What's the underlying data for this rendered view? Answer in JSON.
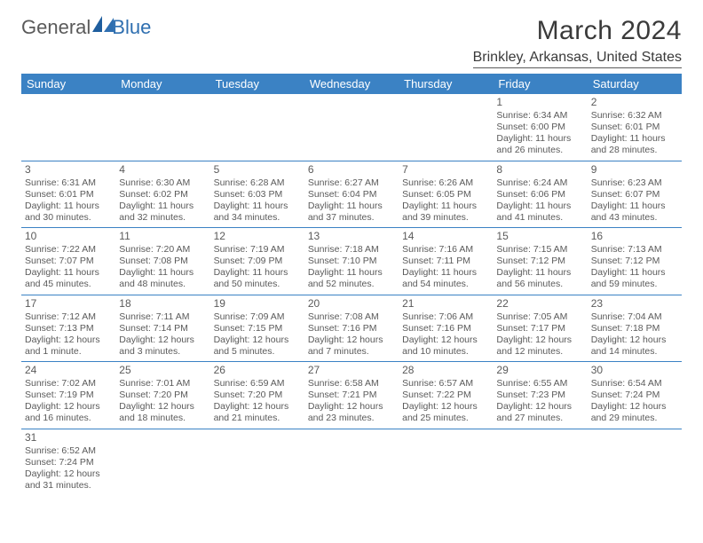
{
  "logo": {
    "text1": "General",
    "text2": "Blue"
  },
  "title": "March 2024",
  "location": "Brinkley, Arkansas, United States",
  "colors": {
    "header_bg": "#3b82c4",
    "header_fg": "#ffffff",
    "rule": "#3b82c4",
    "text": "#5a5a5a",
    "logo_blue": "#2f6fb0"
  },
  "day_names": [
    "Sunday",
    "Monday",
    "Tuesday",
    "Wednesday",
    "Thursday",
    "Friday",
    "Saturday"
  ],
  "weeks": [
    [
      null,
      null,
      null,
      null,
      null,
      {
        "n": "1",
        "sunrise": "Sunrise: 6:34 AM",
        "sunset": "Sunset: 6:00 PM",
        "daylight": "Daylight: 11 hours and 26 minutes."
      },
      {
        "n": "2",
        "sunrise": "Sunrise: 6:32 AM",
        "sunset": "Sunset: 6:01 PM",
        "daylight": "Daylight: 11 hours and 28 minutes."
      }
    ],
    [
      {
        "n": "3",
        "sunrise": "Sunrise: 6:31 AM",
        "sunset": "Sunset: 6:01 PM",
        "daylight": "Daylight: 11 hours and 30 minutes."
      },
      {
        "n": "4",
        "sunrise": "Sunrise: 6:30 AM",
        "sunset": "Sunset: 6:02 PM",
        "daylight": "Daylight: 11 hours and 32 minutes."
      },
      {
        "n": "5",
        "sunrise": "Sunrise: 6:28 AM",
        "sunset": "Sunset: 6:03 PM",
        "daylight": "Daylight: 11 hours and 34 minutes."
      },
      {
        "n": "6",
        "sunrise": "Sunrise: 6:27 AM",
        "sunset": "Sunset: 6:04 PM",
        "daylight": "Daylight: 11 hours and 37 minutes."
      },
      {
        "n": "7",
        "sunrise": "Sunrise: 6:26 AM",
        "sunset": "Sunset: 6:05 PM",
        "daylight": "Daylight: 11 hours and 39 minutes."
      },
      {
        "n": "8",
        "sunrise": "Sunrise: 6:24 AM",
        "sunset": "Sunset: 6:06 PM",
        "daylight": "Daylight: 11 hours and 41 minutes."
      },
      {
        "n": "9",
        "sunrise": "Sunrise: 6:23 AM",
        "sunset": "Sunset: 6:07 PM",
        "daylight": "Daylight: 11 hours and 43 minutes."
      }
    ],
    [
      {
        "n": "10",
        "sunrise": "Sunrise: 7:22 AM",
        "sunset": "Sunset: 7:07 PM",
        "daylight": "Daylight: 11 hours and 45 minutes."
      },
      {
        "n": "11",
        "sunrise": "Sunrise: 7:20 AM",
        "sunset": "Sunset: 7:08 PM",
        "daylight": "Daylight: 11 hours and 48 minutes."
      },
      {
        "n": "12",
        "sunrise": "Sunrise: 7:19 AM",
        "sunset": "Sunset: 7:09 PM",
        "daylight": "Daylight: 11 hours and 50 minutes."
      },
      {
        "n": "13",
        "sunrise": "Sunrise: 7:18 AM",
        "sunset": "Sunset: 7:10 PM",
        "daylight": "Daylight: 11 hours and 52 minutes."
      },
      {
        "n": "14",
        "sunrise": "Sunrise: 7:16 AM",
        "sunset": "Sunset: 7:11 PM",
        "daylight": "Daylight: 11 hours and 54 minutes."
      },
      {
        "n": "15",
        "sunrise": "Sunrise: 7:15 AM",
        "sunset": "Sunset: 7:12 PM",
        "daylight": "Daylight: 11 hours and 56 minutes."
      },
      {
        "n": "16",
        "sunrise": "Sunrise: 7:13 AM",
        "sunset": "Sunset: 7:12 PM",
        "daylight": "Daylight: 11 hours and 59 minutes."
      }
    ],
    [
      {
        "n": "17",
        "sunrise": "Sunrise: 7:12 AM",
        "sunset": "Sunset: 7:13 PM",
        "daylight": "Daylight: 12 hours and 1 minute."
      },
      {
        "n": "18",
        "sunrise": "Sunrise: 7:11 AM",
        "sunset": "Sunset: 7:14 PM",
        "daylight": "Daylight: 12 hours and 3 minutes."
      },
      {
        "n": "19",
        "sunrise": "Sunrise: 7:09 AM",
        "sunset": "Sunset: 7:15 PM",
        "daylight": "Daylight: 12 hours and 5 minutes."
      },
      {
        "n": "20",
        "sunrise": "Sunrise: 7:08 AM",
        "sunset": "Sunset: 7:16 PM",
        "daylight": "Daylight: 12 hours and 7 minutes."
      },
      {
        "n": "21",
        "sunrise": "Sunrise: 7:06 AM",
        "sunset": "Sunset: 7:16 PM",
        "daylight": "Daylight: 12 hours and 10 minutes."
      },
      {
        "n": "22",
        "sunrise": "Sunrise: 7:05 AM",
        "sunset": "Sunset: 7:17 PM",
        "daylight": "Daylight: 12 hours and 12 minutes."
      },
      {
        "n": "23",
        "sunrise": "Sunrise: 7:04 AM",
        "sunset": "Sunset: 7:18 PM",
        "daylight": "Daylight: 12 hours and 14 minutes."
      }
    ],
    [
      {
        "n": "24",
        "sunrise": "Sunrise: 7:02 AM",
        "sunset": "Sunset: 7:19 PM",
        "daylight": "Daylight: 12 hours and 16 minutes."
      },
      {
        "n": "25",
        "sunrise": "Sunrise: 7:01 AM",
        "sunset": "Sunset: 7:20 PM",
        "daylight": "Daylight: 12 hours and 18 minutes."
      },
      {
        "n": "26",
        "sunrise": "Sunrise: 6:59 AM",
        "sunset": "Sunset: 7:20 PM",
        "daylight": "Daylight: 12 hours and 21 minutes."
      },
      {
        "n": "27",
        "sunrise": "Sunrise: 6:58 AM",
        "sunset": "Sunset: 7:21 PM",
        "daylight": "Daylight: 12 hours and 23 minutes."
      },
      {
        "n": "28",
        "sunrise": "Sunrise: 6:57 AM",
        "sunset": "Sunset: 7:22 PM",
        "daylight": "Daylight: 12 hours and 25 minutes."
      },
      {
        "n": "29",
        "sunrise": "Sunrise: 6:55 AM",
        "sunset": "Sunset: 7:23 PM",
        "daylight": "Daylight: 12 hours and 27 minutes."
      },
      {
        "n": "30",
        "sunrise": "Sunrise: 6:54 AM",
        "sunset": "Sunset: 7:24 PM",
        "daylight": "Daylight: 12 hours and 29 minutes."
      }
    ],
    [
      {
        "n": "31",
        "sunrise": "Sunrise: 6:52 AM",
        "sunset": "Sunset: 7:24 PM",
        "daylight": "Daylight: 12 hours and 31 minutes."
      },
      null,
      null,
      null,
      null,
      null,
      null
    ]
  ]
}
